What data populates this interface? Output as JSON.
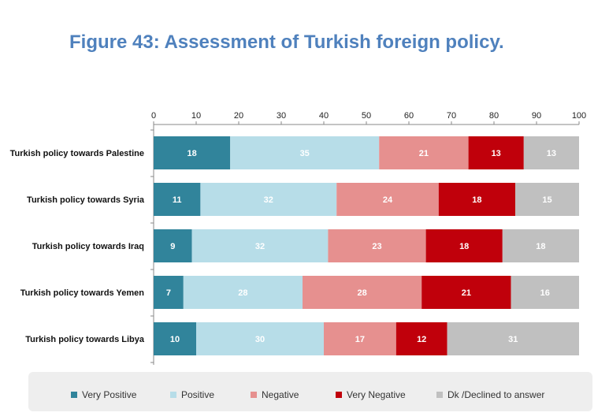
{
  "title": "Figure 43: Assessment of Turkish foreign policy.",
  "chart_data": {
    "type": "bar",
    "orientation": "horizontal",
    "stacked": true,
    "title": "Figure 43: Assessment of Turkish foreign policy.",
    "xlabel": "",
    "ylabel": "",
    "xlim": [
      0,
      100
    ],
    "xticks": [
      0,
      10,
      20,
      30,
      40,
      50,
      60,
      70,
      80,
      90,
      100
    ],
    "axis_position": "top",
    "grid": false,
    "legend_position": "bottom",
    "categories": [
      "Turkish policy towards Palestine",
      "Turkish policy towards Syria",
      "Turkish policy towards Iraq",
      "Turkish policy towards Yemen",
      "Turkish policy towards Libya"
    ],
    "series": [
      {
        "name": "Very Positive",
        "color": "#31849b",
        "label_color": "#ffffff",
        "values": [
          18,
          11,
          9,
          7,
          10
        ]
      },
      {
        "name": "Positive",
        "color": "#b7dde8",
        "label_color": "#ffffff",
        "values": [
          35,
          32,
          32,
          28,
          30
        ]
      },
      {
        "name": "Negative",
        "color": "#e6908f",
        "label_color": "#ffffff",
        "values": [
          21,
          24,
          23,
          28,
          17
        ]
      },
      {
        "name": "Very Negative",
        "color": "#c0000b",
        "label_color": "#ffffff",
        "values": [
          13,
          18,
          18,
          21,
          12
        ]
      },
      {
        "name": "Dk /Declined to answer",
        "color": "#c0c0c0",
        "label_color": "#ffffff",
        "values": [
          13,
          15,
          18,
          16,
          31
        ]
      }
    ]
  }
}
